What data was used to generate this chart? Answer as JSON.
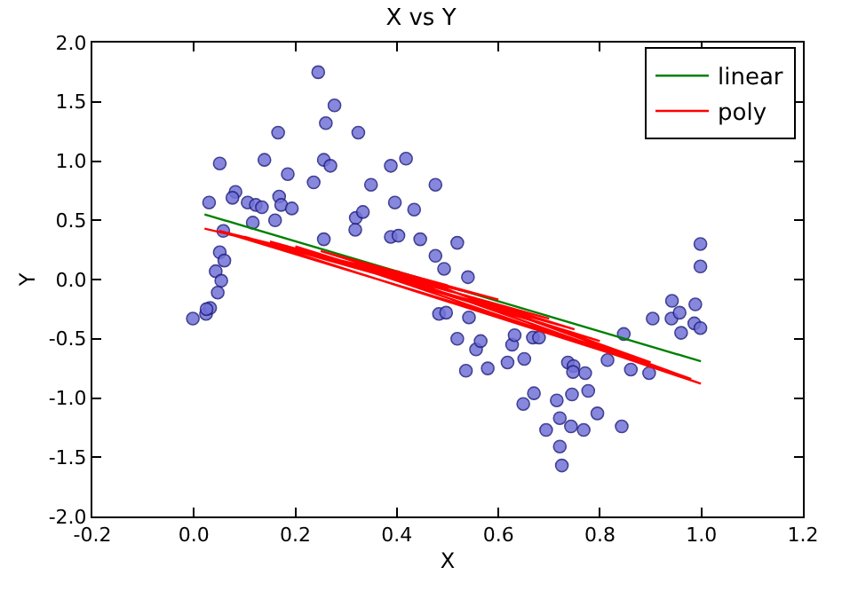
{
  "chart_data": {
    "type": "scatter",
    "title": "X vs Y",
    "xlabel": "X",
    "ylabel": "Y",
    "xlim": [
      -0.2,
      1.2
    ],
    "xticks": [
      {
        "value": -0.2,
        "label": "-0.2"
      },
      {
        "value": 0,
        "label": "0.0"
      },
      {
        "value": 0.2,
        "label": "0.2"
      },
      {
        "value": 0.4,
        "label": "0.4"
      },
      {
        "value": 0.6,
        "label": "0.6"
      },
      {
        "value": 0.8,
        "label": "0.8"
      },
      {
        "value": 1,
        "label": "1.0"
      },
      {
        "value": 1.2,
        "label": "1.2"
      }
    ],
    "ylim": [
      -2,
      2
    ],
    "yticks": [
      {
        "value": -2,
        "label": "-2.0"
      },
      {
        "value": -1.5,
        "label": "-1.5"
      },
      {
        "value": -1,
        "label": "-1.0"
      },
      {
        "value": -0.5,
        "label": "-0.5"
      },
      {
        "value": 0,
        "label": "0.0"
      },
      {
        "value": 0.5,
        "label": "0.5"
      },
      {
        "value": 1,
        "label": "1.0"
      },
      {
        "value": 1.5,
        "label": "1.5"
      },
      {
        "value": 2,
        "label": "2.0"
      }
    ],
    "legend": "top right",
    "series": [
      {
        "marker": "circle",
        "color": "#7373d9",
        "x": [
          0.245,
          0.277,
          0.26,
          0.166,
          0.324,
          0.051,
          0.139,
          0.256,
          0.269,
          0.185,
          0.236,
          0.349,
          0.388,
          0.418,
          0.476,
          0.082,
          0.076,
          0.03,
          0.106,
          0.122,
          0.134,
          0.168,
          0.172,
          0.193,
          0.116,
          0.16,
          0.396,
          0.434,
          0.319,
          0.333,
          0.318,
          0.388,
          0.403,
          0.446,
          0.256,
          0.058,
          0.051,
          0.06,
          0.043,
          0.054,
          0.047,
          -0.002,
          0.024,
          0.032,
          0.025,
          0.476,
          0.483,
          0.519,
          0.493,
          0.54,
          0.497,
          0.542,
          0.519,
          0.556,
          0.565,
          0.627,
          0.632,
          0.668,
          0.68,
          0.847,
          0.904,
          0.942,
          0.941,
          0.957,
          0.96,
          0.988,
          0.986,
          0.998,
          0.998,
          0.998,
          0.536,
          0.579,
          0.618,
          0.651,
          0.67,
          0.649,
          0.694,
          0.715,
          0.721,
          0.721,
          0.725,
          0.737,
          0.748,
          0.747,
          0.771,
          0.745,
          0.743,
          0.768,
          0.777,
          0.795,
          0.815,
          0.843,
          0.861,
          0.897
        ],
        "values": [
          1.75,
          1.47,
          1.32,
          1.24,
          1.24,
          0.98,
          1.01,
          1.01,
          0.96,
          0.89,
          0.82,
          0.8,
          0.96,
          1.02,
          0.8,
          0.74,
          0.69,
          0.65,
          0.65,
          0.63,
          0.61,
          0.7,
          0.63,
          0.6,
          0.48,
          0.5,
          0.65,
          0.59,
          0.52,
          0.57,
          0.42,
          0.36,
          0.37,
          0.34,
          0.34,
          0.41,
          0.23,
          0.16,
          0.07,
          -0.01,
          -0.11,
          -0.33,
          -0.29,
          -0.24,
          -0.25,
          0.2,
          -0.29,
          0.31,
          0.09,
          0.02,
          -0.28,
          -0.32,
          -0.5,
          -0.59,
          -0.52,
          -0.55,
          -0.47,
          -0.49,
          -0.49,
          -0.46,
          -0.33,
          -0.18,
          -0.33,
          -0.28,
          -0.45,
          -0.21,
          -0.37,
          -0.41,
          0.3,
          0.11,
          -0.77,
          -0.75,
          -0.7,
          -0.67,
          -0.96,
          -1.05,
          -1.27,
          -1.02,
          -1.17,
          -1.41,
          -1.57,
          -0.7,
          -0.73,
          -0.78,
          -0.79,
          -0.97,
          -1.24,
          -1.27,
          -0.94,
          -1.13,
          -0.68,
          -1.24,
          -0.76,
          -0.79
        ]
      },
      {
        "type": "line",
        "name": "linear",
        "color": "#008000",
        "marker": "none",
        "line_style": "solid",
        "x": [
          0.021,
          0.999
        ],
        "values": [
          0.55,
          -0.69
        ]
      },
      {
        "type": "line",
        "name": "poly",
        "color": "#ff0000",
        "marker": "none",
        "line_style": "solid",
        "x": [
          0.021,
          0.5,
          0.25,
          0.75,
          0.1,
          0.98,
          0.4,
          0.9,
          0.05,
          0.6,
          0.3,
          0.999,
          0.2,
          0.8,
          0.15,
          0.7
        ],
        "values": [
          0.43,
          -0.05,
          0.24,
          -0.42,
          0.36,
          -0.84,
          0.07,
          -0.7,
          0.41,
          -0.17,
          0.18,
          -0.88,
          0.28,
          -0.52,
          0.32,
          -0.33
        ]
      }
    ]
  }
}
